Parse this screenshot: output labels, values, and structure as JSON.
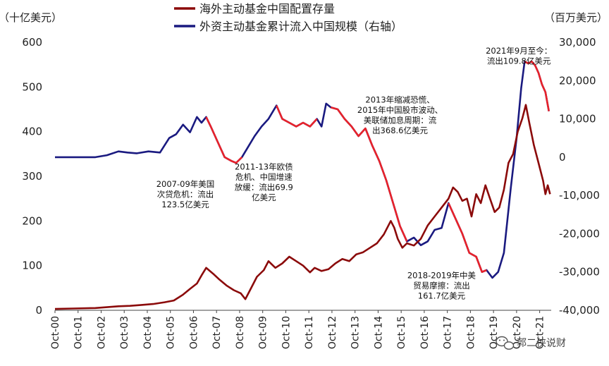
{
  "chart_data": {
    "type": "line",
    "left_axis_unit": "（十亿美元）",
    "right_axis_unit": "（百万美元）",
    "left_axis": {
      "min": 0,
      "max": 600,
      "ticks": [
        0,
        100,
        200,
        300,
        400,
        500,
        600
      ],
      "tick_labels": [
        "0",
        "100",
        "200",
        "300",
        "400",
        "500",
        "600"
      ]
    },
    "right_axis": {
      "min": -40000,
      "max": 30000,
      "ticks": [
        -40000,
        -30000,
        -20000,
        -10000,
        0,
        10000,
        20000,
        30000
      ],
      "tick_labels": [
        "-40,000",
        "-30,000",
        "-20,000",
        "-10,000",
        "0",
        "10,000",
        "20,000",
        "30,000"
      ]
    },
    "x_axis": {
      "start": 2000.75,
      "end": 2022.25,
      "ticks": [
        2000.75,
        2001.75,
        2002.75,
        2003.75,
        2004.75,
        2005.75,
        2006.75,
        2007.75,
        2008.75,
        2009.75,
        2010.75,
        2011.75,
        2012.75,
        2013.75,
        2014.75,
        2015.75,
        2016.75,
        2017.75,
        2018.75,
        2019.75,
        2020.75,
        2021.75
      ],
      "tick_labels": [
        "Oct-00",
        "Oct-01",
        "Oct-02",
        "Oct-03",
        "Oct-04",
        "Oct-05",
        "Oct-06",
        "Oct-07",
        "Oct-08",
        "Oct-09",
        "Oct-10",
        "Oct-11",
        "Oct-12",
        "Oct-13",
        "Oct-14",
        "Oct-15",
        "Oct-16",
        "Oct-17",
        "Oct-18",
        "Oct-19",
        "Oct-20",
        "Oct-21"
      ]
    },
    "series": [
      {
        "name": "海外主动基金中国配置存量",
        "axis": "left",
        "color": "#8b0a0a",
        "x": [
          2000.75,
          2001.5,
          2002.5,
          2003.0,
          2003.5,
          2004.0,
          2004.5,
          2005.0,
          2005.5,
          2005.9,
          2006.3,
          2006.6,
          2006.9,
          2007.1,
          2007.3,
          2007.6,
          2007.85,
          2008.2,
          2008.5,
          2008.8,
          2009.0,
          2009.2,
          2009.5,
          2009.8,
          2010.0,
          2010.3,
          2010.6,
          2010.9,
          2011.2,
          2011.5,
          2011.8,
          2012.0,
          2012.3,
          2012.6,
          2012.9,
          2013.2,
          2013.5,
          2013.8,
          2014.1,
          2014.4,
          2014.7,
          2015.0,
          2015.3,
          2015.45,
          2015.6,
          2015.8,
          2016.0,
          2016.3,
          2016.6,
          2016.9,
          2017.2,
          2017.5,
          2017.8,
          2018.0,
          2018.2,
          2018.4,
          2018.6,
          2018.8,
          2019.0,
          2019.2,
          2019.4,
          2019.6,
          2019.8,
          2020.0,
          2020.2,
          2020.4,
          2020.6,
          2020.8,
          2021.0,
          2021.15,
          2021.3,
          2021.5,
          2021.7,
          2021.9,
          2022.0,
          2022.1,
          2022.2
        ],
        "values": [
          3,
          4,
          5,
          7,
          9,
          10,
          12,
          14,
          18,
          22,
          35,
          48,
          60,
          78,
          95,
          82,
          70,
          55,
          45,
          38,
          25,
          45,
          75,
          90,
          110,
          95,
          105,
          120,
          110,
          100,
          85,
          95,
          88,
          92,
          105,
          115,
          110,
          125,
          130,
          140,
          150,
          170,
          200,
          185,
          160,
          140,
          150,
          145,
          160,
          190,
          210,
          230,
          250,
          275,
          265,
          245,
          250,
          210,
          260,
          240,
          280,
          250,
          220,
          230,
          270,
          330,
          350,
          400,
          430,
          460,
          420,
          370,
          330,
          290,
          260,
          280,
          260
        ]
      },
      {
        "name": "外资主动基金累计流入中国规模（右轴）",
        "axis": "right",
        "color": "#1a1a80",
        "x": [
          2000.75,
          2001.5,
          2002.5,
          2003.0,
          2003.5,
          2003.9,
          2004.3,
          2004.8,
          2005.3,
          2005.7,
          2006.0,
          2006.3,
          2006.6,
          2006.9,
          2007.1,
          2007.3,
          2007.5,
          2007.8,
          2008.1,
          2008.4,
          2008.6,
          2008.85,
          2009.1,
          2009.4,
          2009.7,
          2010.0,
          2010.2,
          2010.35,
          2010.6,
          2010.9,
          2011.2,
          2011.5,
          2011.8,
          2012.1,
          2012.3,
          2012.5,
          2012.7,
          2013.0,
          2013.3,
          2013.6,
          2013.9,
          2014.2,
          2014.5,
          2014.8,
          2015.1,
          2015.4,
          2015.7,
          2016.0,
          2016.3,
          2016.6,
          2016.9,
          2017.2,
          2017.5,
          2017.8,
          2018.1,
          2018.4,
          2018.7,
          2019.0,
          2019.25,
          2019.45,
          2019.7,
          2019.95,
          2020.2,
          2020.5,
          2020.75,
          2020.95,
          2021.1,
          2021.25,
          2021.4,
          2021.55,
          2021.7,
          2021.85,
          2022.0,
          2022.15
        ],
        "values": [
          0,
          0,
          0,
          500,
          1500,
          1200,
          1000,
          1500,
          1200,
          5000,
          6000,
          8500,
          6500,
          10500,
          9000,
          10500,
          8000,
          4000,
          0,
          -1000,
          -1500,
          0,
          2500,
          5500,
          8000,
          10000,
          12000,
          13500,
          10000,
          9000,
          8000,
          9000,
          8000,
          10000,
          8000,
          14000,
          13000,
          12500,
          10000,
          8000,
          5500,
          7500,
          3000,
          -1000,
          -6000,
          -12000,
          -18000,
          -22000,
          -21000,
          -23000,
          -22000,
          -19000,
          -18500,
          -12000,
          -16000,
          -20000,
          -25000,
          -26000,
          -30000,
          -29500,
          -31500,
          -30000,
          -25000,
          -8000,
          5000,
          18000,
          25000,
          24500,
          25000,
          24000,
          22000,
          19000,
          17000,
          12000
        ]
      }
    ],
    "outflow_periods": [
      {
        "x_start": 2007.3,
        "x_end": 2008.85,
        "color": "#e8222a"
      },
      {
        "x_start": 2010.35,
        "x_end": 2012.1,
        "color": "#e8222a"
      },
      {
        "x_start": 2012.7,
        "x_end": 2016.0,
        "color": "#e8222a"
      },
      {
        "x_start": 2017.8,
        "x_end": 2019.45,
        "color": "#e8222a"
      },
      {
        "x_start": 2021.1,
        "x_end": 2022.15,
        "color": "#e8222a"
      }
    ],
    "annotations": [
      {
        "id": "gfc",
        "anchor": [
          2006.4,
          276
        ],
        "lines": [
          "2007-09年美国",
          "次贷危机：流出",
          "123.5亿美元"
        ]
      },
      {
        "id": "euro",
        "anchor": [
          2009.8,
          315
        ],
        "lines": [
          "2011-13年欧债",
          "危机、中国增速",
          "放缓：流出69.9",
          "亿美元"
        ]
      },
      {
        "id": "taper",
        "anchor": [
          2015.7,
          465
        ],
        "lines": [
          "2013年缩减恐慌、",
          "2015年中国股市波动、",
          "美联储加息周期：流",
          "出368.6亿美元"
        ]
      },
      {
        "id": "trade",
        "anchor": [
          2017.5,
          72
        ],
        "lines": [
          "2018-2019年中美",
          "贸易摩擦：流出",
          "161.7亿美元"
        ]
      },
      {
        "id": "recent",
        "anchor": [
          2020.85,
          575
        ],
        "lines": [
          "2021年9月至今：",
          "流出109.8亿美元"
        ]
      }
    ]
  },
  "watermark": {
    "text": "郭二侠说财",
    "icon": "wechat-icon"
  }
}
